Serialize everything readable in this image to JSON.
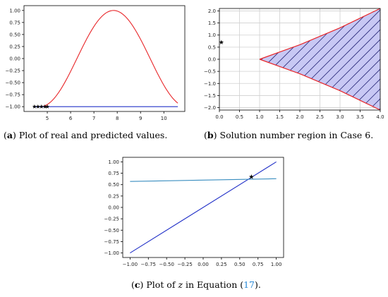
{
  "captions": {
    "a": {
      "label": "a",
      "text": " Plot of real and predicted values."
    },
    "b": {
      "label": "b",
      "text": " Solution number region in Case 6."
    },
    "c": {
      "label": "c",
      "pre": " Plot of ",
      "var": "z",
      "mid": " in Equation (",
      "ref": "17",
      "post": ")."
    }
  },
  "chart_data": [
    {
      "id": "a",
      "type": "line",
      "title": "",
      "xlabel": "",
      "ylabel": "",
      "xlim": [
        4.0,
        10.9
      ],
      "ylim": [
        -1.1,
        1.1
      ],
      "xticks": [
        5,
        6,
        7,
        8,
        9,
        10
      ],
      "yticks": [
        -1.0,
        -0.75,
        -0.5,
        -0.25,
        0.0,
        0.25,
        0.5,
        0.75,
        1.0
      ],
      "ytick_labels": [
        "−1.00",
        "−0.75",
        "−0.50",
        "−0.25",
        "0.00",
        "0.25",
        "0.50",
        "0.75",
        "1.00"
      ],
      "grid": false,
      "series": [
        {
          "kind": "curve",
          "color": "#e8272a",
          "formula": "-cos(x-4.7)",
          "x_range": [
            4.7,
            10.6
          ]
        },
        {
          "kind": "line",
          "color": "#2332c8",
          "x": [
            4.4,
            10.6
          ],
          "y": [
            -1.0,
            -1.0
          ]
        },
        {
          "kind": "markers",
          "marker": "star",
          "color": "#000000",
          "x": [
            4.45,
            4.6,
            4.75,
            4.9,
            5.0
          ],
          "y": [
            -1.0,
            -1.0,
            -1.0,
            -1.0,
            -1.0
          ]
        }
      ]
    },
    {
      "id": "b",
      "type": "area",
      "title": "",
      "xlabel": "",
      "ylabel": "",
      "xlim": [
        0.0,
        4.0
      ],
      "ylim": [
        -2.1,
        2.1
      ],
      "xticks": [
        0.0,
        0.5,
        1.0,
        1.5,
        2.0,
        2.5,
        3.0,
        3.5,
        4.0
      ],
      "yticks": [
        -2.0,
        -1.5,
        -1.0,
        -0.5,
        0.0,
        0.5,
        1.0,
        1.5,
        2.0
      ],
      "ytick_labels": [
        "−2.0",
        "−1.5",
        "−1.0",
        "−0.5",
        "0.0",
        "0.5",
        "1.0",
        "1.5",
        "2.0"
      ],
      "grid": true,
      "region": {
        "fill": "#c8c8f4",
        "hatch": "#2a2a7a",
        "edge": "#e8272a",
        "upper": {
          "x": [
            1.0,
            1.5,
            2.0,
            2.5,
            3.0,
            3.5,
            4.0
          ],
          "y": [
            0.0,
            0.3,
            0.6,
            0.95,
            1.3,
            1.7,
            2.1
          ]
        },
        "lower": {
          "x": [
            1.0,
            1.5,
            2.0,
            2.5,
            3.0,
            3.5,
            4.0
          ],
          "y": [
            0.0,
            -0.3,
            -0.6,
            -0.95,
            -1.3,
            -1.7,
            -2.1
          ]
        }
      },
      "markers": [
        {
          "marker": "star",
          "color": "#000000",
          "x": 0.05,
          "y": 0.7
        }
      ]
    },
    {
      "id": "c",
      "type": "line",
      "title": "",
      "xlabel": "",
      "ylabel": "",
      "xlim": [
        -1.1,
        1.1
      ],
      "ylim": [
        -1.1,
        1.1
      ],
      "xticks": [
        -1.0,
        -0.75,
        -0.5,
        -0.25,
        0.0,
        0.25,
        0.5,
        0.75,
        1.0
      ],
      "xtick_labels": [
        "−1.00",
        "−0.75",
        "−0.50",
        "−0.25",
        "0.00",
        "0.25",
        "0.50",
        "0.75",
        "1.00"
      ],
      "yticks": [
        -1.0,
        -0.75,
        -0.5,
        -0.25,
        0.0,
        0.25,
        0.5,
        0.75,
        1.0
      ],
      "ytick_labels": [
        "−1.00",
        "−0.75",
        "−0.50",
        "−0.25",
        "0.00",
        "0.25",
        "0.50",
        "0.75",
        "1.00"
      ],
      "grid": false,
      "series": [
        {
          "kind": "line",
          "color": "#2332c8",
          "x": [
            -1.0,
            1.0
          ],
          "y": [
            -1.0,
            1.0
          ]
        },
        {
          "kind": "line",
          "color": "#3a8ec0",
          "x": [
            -1.0,
            1.0
          ],
          "y": [
            0.57,
            0.63
          ]
        },
        {
          "kind": "markers",
          "marker": "star",
          "color": "#000000",
          "x": [
            0.66
          ],
          "y": [
            0.67
          ]
        }
      ]
    }
  ]
}
